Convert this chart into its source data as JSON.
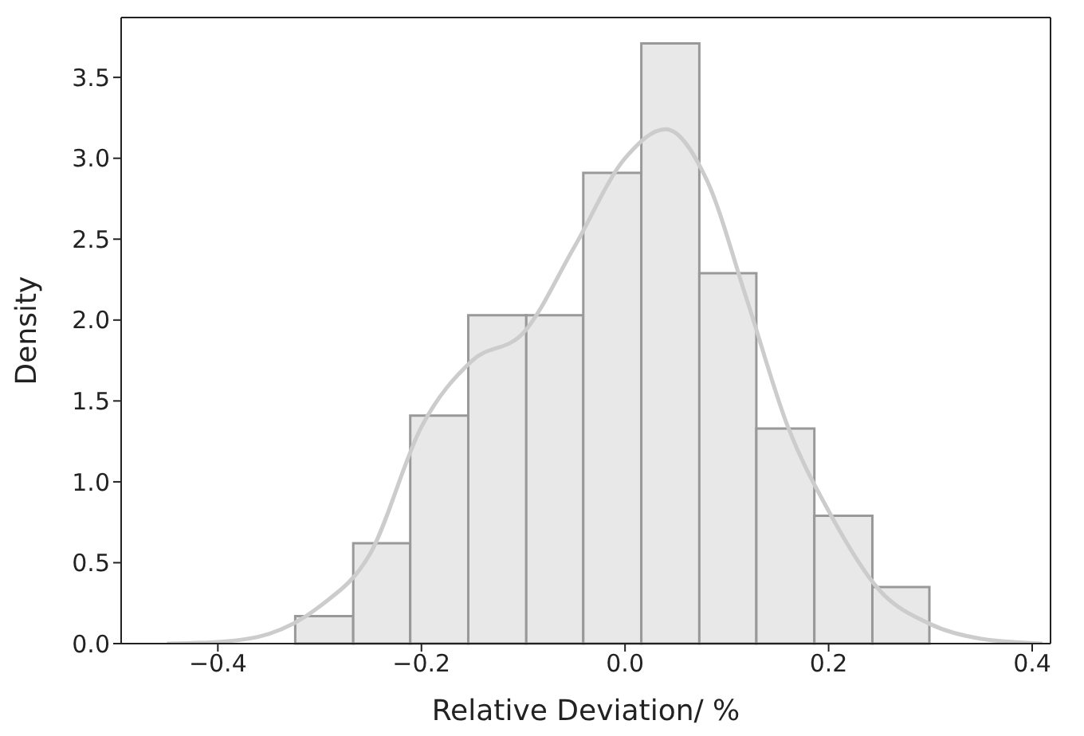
{
  "chart_data": {
    "type": "histogram",
    "xlabel": "Relative Deviation/ %",
    "ylabel": "Density",
    "bins": [
      -0.324,
      -0.267,
      -0.211,
      -0.154,
      -0.097,
      -0.041,
      0.016,
      0.073,
      0.129,
      0.186,
      0.243,
      0.299
    ],
    "values": [
      0.17,
      0.62,
      1.41,
      2.03,
      2.03,
      2.91,
      3.71,
      2.29,
      1.33,
      0.79,
      0.35
    ],
    "color": "#e8e8e8",
    "series": [
      {
        "type": "line",
        "color": "#cccccc",
        "x": [
          -0.45,
          -0.4,
          -0.35,
          -0.3,
          -0.25,
          -0.2,
          -0.15,
          -0.1,
          -0.05,
          0.0,
          0.04,
          0.08,
          0.12,
          0.16,
          0.2,
          0.25,
          0.3,
          0.35,
          0.41
        ],
        "values": [
          0.0,
          0.01,
          0.06,
          0.23,
          0.56,
          1.34,
          1.75,
          1.92,
          2.45,
          3.0,
          3.18,
          2.87,
          2.12,
          1.34,
          0.82,
          0.33,
          0.12,
          0.03,
          0.0
        ]
      }
    ],
    "xlim": [
      -0.495,
      0.418
    ],
    "xticks": [
      {
        "value": -0.4,
        "label": "−0.4"
      },
      {
        "value": -0.2,
        "label": "−0.2"
      },
      {
        "value": 0,
        "label": "0.0"
      },
      {
        "value": 0.2,
        "label": "0.2"
      },
      {
        "value": 0.4,
        "label": "0.4"
      }
    ],
    "ylim": [
      0,
      3.87
    ],
    "yticks": [
      {
        "value": 0,
        "label": "0.0"
      },
      {
        "value": 0.5,
        "label": "0.5"
      },
      {
        "value": 1,
        "label": "1.0"
      },
      {
        "value": 1.5,
        "label": "1.5"
      },
      {
        "value": 2,
        "label": "2.0"
      },
      {
        "value": 2.5,
        "label": "2.5"
      },
      {
        "value": 3,
        "label": "3.0"
      },
      {
        "value": 3.5,
        "label": "3.5"
      }
    ],
    "grid": false,
    "marker": "none",
    "line_style": "solid"
  }
}
